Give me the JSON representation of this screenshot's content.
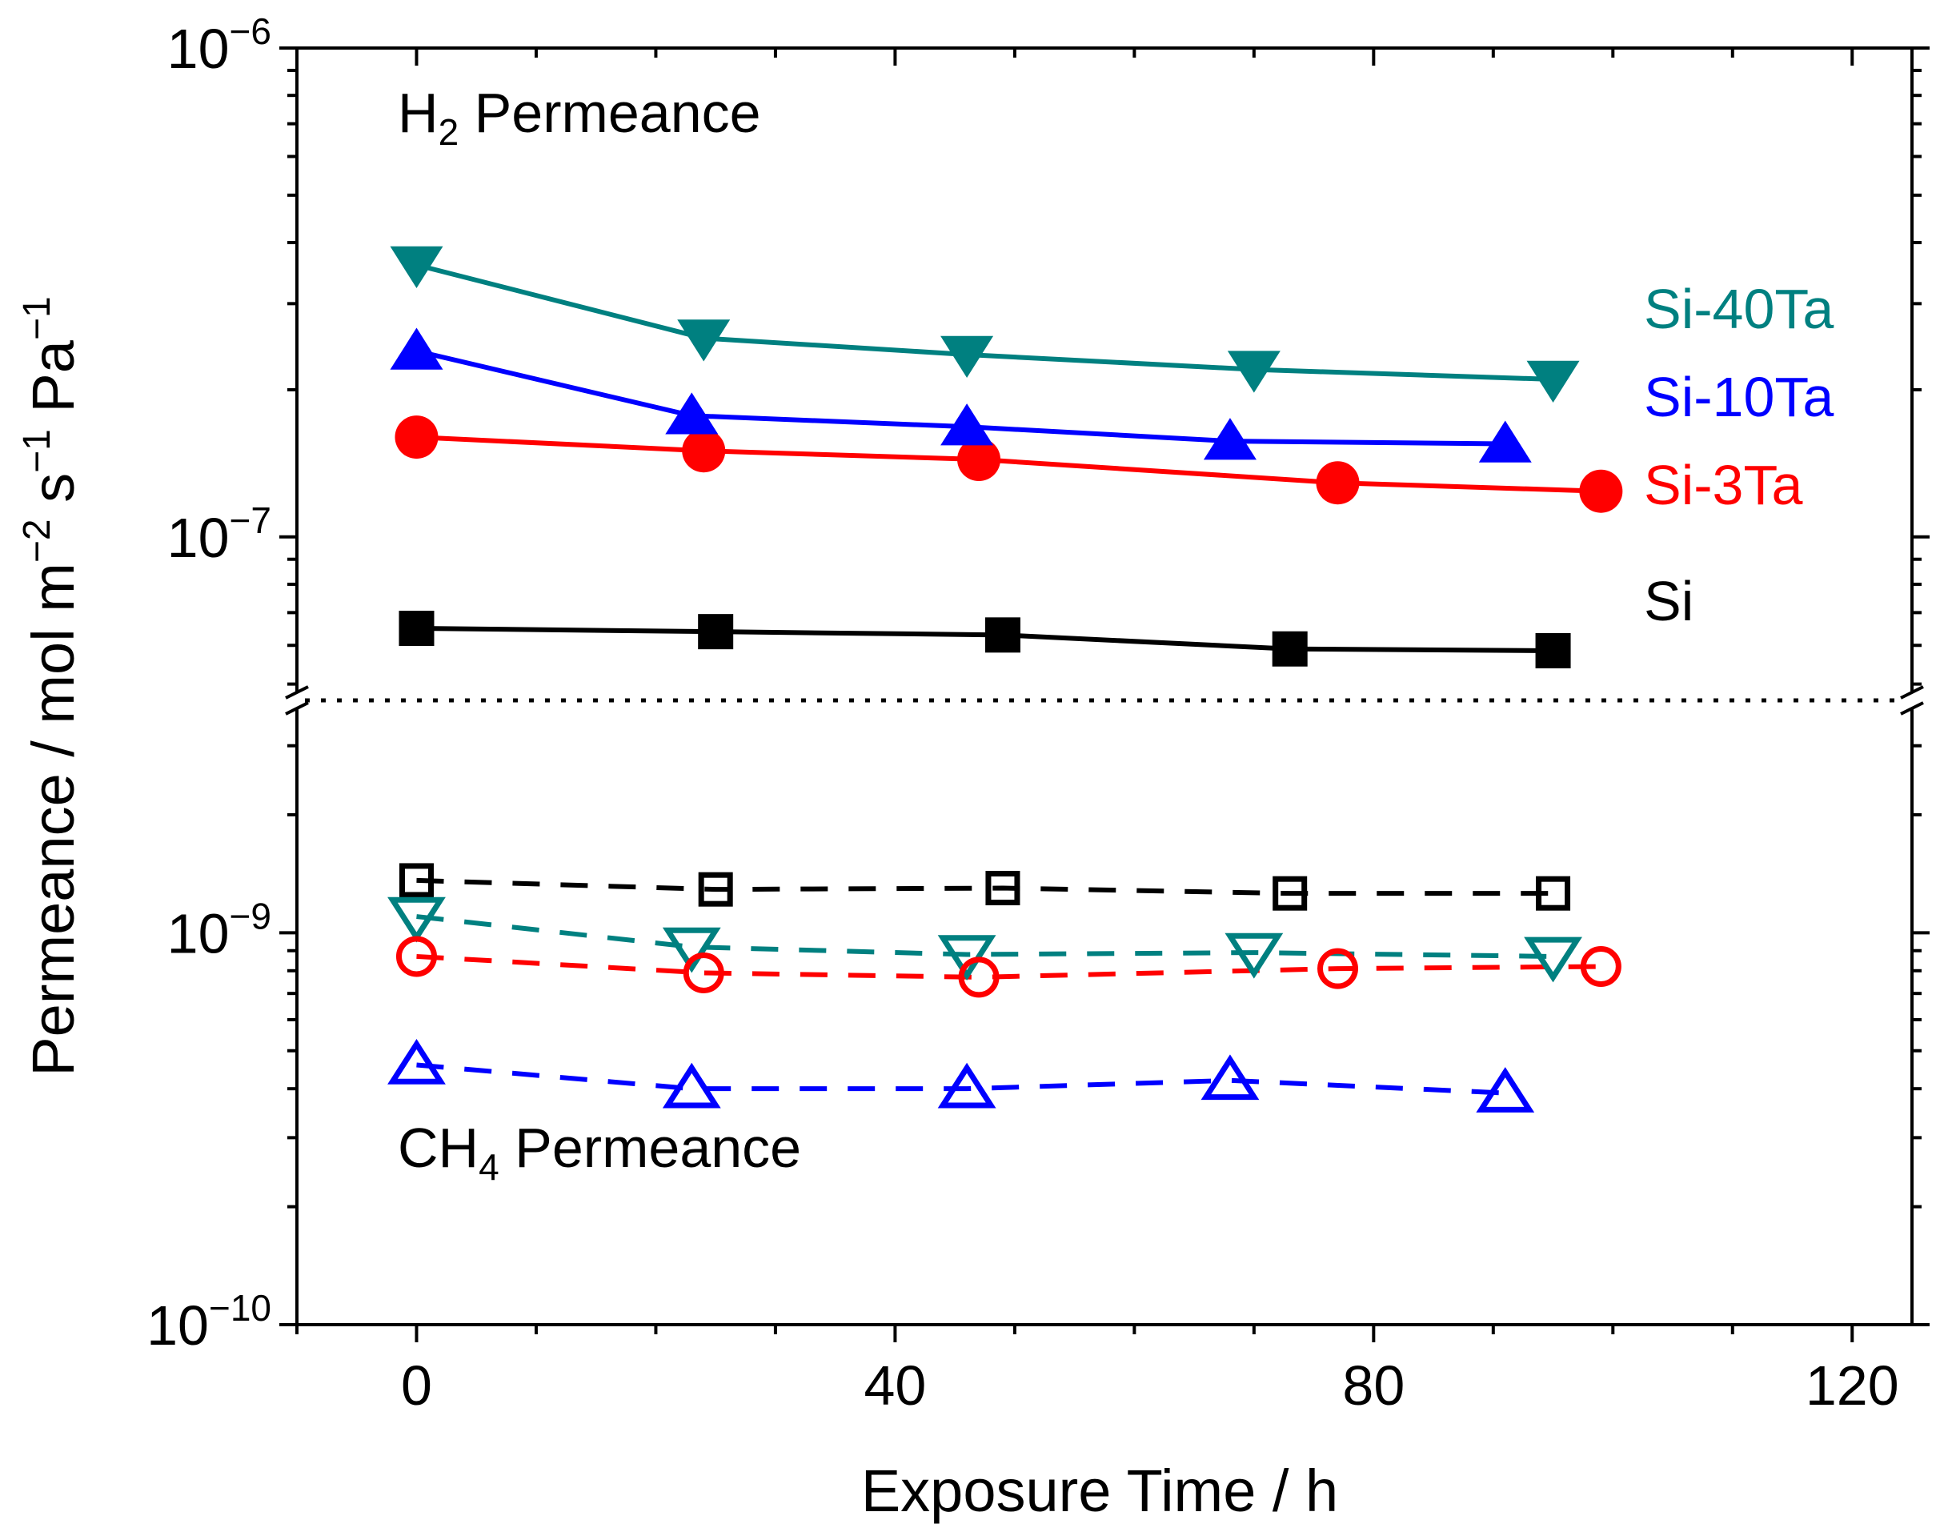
{
  "chart_data": {
    "type": "line",
    "xlabel": "Exposure Time / h",
    "ylabel": {
      "parts": [
        {
          "t": "Permeance / mol m",
          "sup": false
        },
        {
          "t": "−2",
          "sup": true
        },
        {
          "t": " s",
          "sup": false
        },
        {
          "t": "−1",
          "sup": true
        },
        {
          "t": " Pa",
          "sup": false
        },
        {
          "t": "−1",
          "sup": true
        }
      ]
    },
    "xlim": [
      -10,
      125
    ],
    "xticks": [
      {
        "value": 0,
        "label": "0"
      },
      {
        "value": 40,
        "label": "40"
      },
      {
        "value": 80,
        "label": "80"
      },
      {
        "value": 120,
        "label": "120"
      }
    ],
    "panels": {
      "upper": {
        "title_main": "H",
        "title_sub": "2",
        "title_rest": " Permeance",
        "ylog": [
          -7.3,
          -6
        ],
        "yticks": [
          {
            "exp": -6,
            "base": "10",
            "power": "−6"
          },
          {
            "exp": -7,
            "base": "10",
            "power": "−7"
          }
        ]
      },
      "lower": {
        "title_main": "CH",
        "title_sub": "4",
        "title_rest": " Permeance",
        "ylog": [
          -10,
          -8.45
        ],
        "yticks": [
          {
            "exp": -9,
            "base": "10",
            "power": "−9"
          },
          {
            "exp": -10,
            "base": "10",
            "power": "−10"
          }
        ]
      }
    },
    "series": [
      {
        "name": "Si",
        "gas": "H2",
        "panel": "upper",
        "color": "#000000",
        "marker": "square",
        "filled": true,
        "dashed": false,
        "x": [
          0,
          25,
          49,
          73,
          95
        ],
        "y": [
          6.5e-08,
          6.4e-08,
          6.3e-08,
          5.9e-08,
          5.85e-08
        ]
      },
      {
        "name": "Si-3Ta",
        "gas": "H2",
        "panel": "upper",
        "color": "#ff0000",
        "marker": "circle",
        "filled": true,
        "dashed": false,
        "x": [
          0,
          24,
          47,
          77,
          99
        ],
        "y": [
          1.6e-07,
          1.5e-07,
          1.44e-07,
          1.29e-07,
          1.24e-07
        ]
      },
      {
        "name": "Si-10Ta",
        "gas": "H2",
        "panel": "upper",
        "color": "#0000ff",
        "marker": "triangle-up",
        "filled": true,
        "dashed": false,
        "x": [
          0,
          23,
          46,
          68,
          91
        ],
        "y": [
          2.4e-07,
          1.77e-07,
          1.68e-07,
          1.57e-07,
          1.55e-07
        ]
      },
      {
        "name": "Si-40Ta",
        "gas": "H2",
        "panel": "upper",
        "color": "#008080",
        "marker": "triangle-down",
        "filled": true,
        "dashed": false,
        "x": [
          0,
          24,
          46,
          70,
          95
        ],
        "y": [
          3.6e-07,
          2.55e-07,
          2.36e-07,
          2.2e-07,
          2.1e-07
        ]
      },
      {
        "name": "Si",
        "gas": "CH4",
        "panel": "lower",
        "color": "#000000",
        "marker": "square",
        "filled": false,
        "dashed": true,
        "x": [
          0,
          25,
          49,
          73,
          95
        ],
        "y": [
          1.36e-09,
          1.29e-09,
          1.3e-09,
          1.26e-09,
          1.26e-09
        ]
      },
      {
        "name": "Si-40Ta",
        "gas": "CH4",
        "panel": "lower",
        "color": "#008080",
        "marker": "triangle-down",
        "filled": false,
        "dashed": true,
        "x": [
          0,
          23,
          46,
          70,
          95
        ],
        "y": [
          1.1e-09,
          9.2e-10,
          8.8e-10,
          8.9e-10,
          8.7e-10
        ]
      },
      {
        "name": "Si-3Ta",
        "gas": "CH4",
        "panel": "lower",
        "color": "#ff0000",
        "marker": "circle",
        "filled": false,
        "dashed": true,
        "x": [
          0,
          24,
          47,
          77,
          99
        ],
        "y": [
          8.7e-10,
          7.9e-10,
          7.7e-10,
          8.1e-10,
          8.2e-10
        ]
      },
      {
        "name": "Si-10Ta",
        "gas": "CH4",
        "panel": "lower",
        "color": "#0000ff",
        "marker": "triangle-up",
        "filled": false,
        "dashed": true,
        "x": [
          0,
          23,
          46,
          68,
          91
        ],
        "y": [
          4.6e-10,
          4e-10,
          4e-10,
          4.2e-10,
          3.9e-10
        ]
      }
    ],
    "labels": [
      {
        "text": "Si-40Ta",
        "color": "#008080"
      },
      {
        "text": "Si-10Ta",
        "color": "#0000ff"
      },
      {
        "text": "Si-3Ta",
        "color": "#ff0000"
      },
      {
        "text": "Si",
        "color": "#000000"
      }
    ]
  }
}
